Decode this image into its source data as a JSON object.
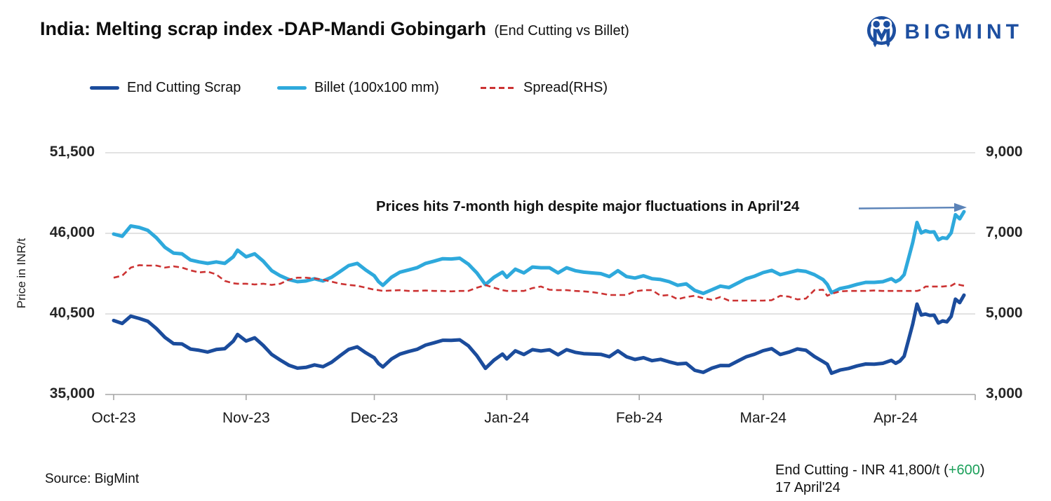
{
  "header": {
    "title": "India: Melting scrap index -DAP-Mandi Gobingarh",
    "subtitle": "(End Cutting vs Billet)",
    "brand": "BIGMINT",
    "brand_color": "#1D4FA0",
    "logo_icon": "bigmint-people-m-icon"
  },
  "legend": {
    "items": [
      {
        "label": "End Cutting Scrap",
        "color": "#1B4C9C",
        "style": "solid"
      },
      {
        "label": "Billet (100x100 mm)",
        "color": "#2EA9DC",
        "style": "solid"
      },
      {
        "label": "Spread(RHS)",
        "color": "#CC3333",
        "style": "dashed"
      }
    ]
  },
  "annotation": {
    "text": "Prices hits 7-month high despite major fluctuations in April'24",
    "arrow_icon": "right-arrow-icon",
    "arrow_color": "#5B83B8"
  },
  "footer": {
    "source_label": "Source: BigMint",
    "price_prefix": "End Cutting - INR 41,800/t (",
    "price_change": "+600",
    "price_suffix": ")",
    "change_color": "#1BA05A",
    "date_line": "17 April'24"
  },
  "chart_data": {
    "type": "line",
    "title": "India: Melting scrap index -DAP-Mandi Gobingarh (End Cutting vs Billet)",
    "x_unit": "days since 1 Oct 2023",
    "grid": true,
    "legend_position": "top",
    "left_axis": {
      "title": "Price in INR/t",
      "range": [
        35000,
        51500
      ],
      "ticks": [
        35000,
        40500,
        46000,
        51500
      ],
      "labels": [
        "35,000",
        "40,500",
        "46,000",
        "51,500"
      ]
    },
    "right_axis": {
      "title": "",
      "range": [
        3000,
        9000
      ],
      "ticks": [
        3000,
        5000,
        7000,
        9000
      ],
      "labels": [
        "3,000",
        "5,000",
        "7,000",
        "9,000"
      ]
    },
    "x_ticks": [
      {
        "day": 0,
        "label": "Oct-23"
      },
      {
        "day": 31,
        "label": "Nov-23"
      },
      {
        "day": 61,
        "label": "Dec-23"
      },
      {
        "day": 92,
        "label": "Jan-24"
      },
      {
        "day": 123,
        "label": "Feb-24"
      },
      {
        "day": 152,
        "label": "Mar-24"
      },
      {
        "day": 183,
        "label": "Apr-24"
      }
    ],
    "x": [
      0,
      2,
      4,
      6,
      8,
      10,
      12,
      14,
      16,
      18,
      20,
      22,
      24,
      26,
      28,
      29,
      31,
      33,
      35,
      37,
      39,
      41,
      43,
      45,
      47,
      49,
      51,
      53,
      55,
      57,
      59,
      61,
      62,
      63,
      65,
      67,
      69,
      71,
      73,
      75,
      77,
      79,
      81,
      83,
      85,
      87,
      89,
      91,
      92,
      94,
      96,
      98,
      100,
      102,
      104,
      106,
      108,
      110,
      112,
      114,
      116,
      118,
      120,
      122,
      124,
      126,
      128,
      130,
      132,
      134,
      136,
      138,
      140,
      142,
      144,
      146,
      148,
      150,
      152,
      154,
      156,
      158,
      160,
      162,
      164,
      166,
      167,
      168,
      170,
      172,
      174,
      176,
      178,
      180,
      182,
      183,
      184,
      185,
      186,
      187,
      188,
      189,
      190,
      191,
      192,
      193,
      194,
      195,
      196,
      197,
      198,
      199
    ],
    "series": [
      {
        "name": "Billet (100x100 mm)",
        "axis": "left",
        "color": "#2EA9DC",
        "width": 5,
        "dash": "",
        "values": [
          45950,
          45800,
          46500,
          46400,
          46200,
          45700,
          45050,
          44650,
          44600,
          44180,
          44050,
          43950,
          44050,
          43950,
          44400,
          44850,
          44400,
          44600,
          44100,
          43450,
          43100,
          42850,
          42700,
          42750,
          42900,
          42750,
          43000,
          43400,
          43800,
          43950,
          43500,
          43100,
          42700,
          42450,
          43000,
          43350,
          43500,
          43650,
          43950,
          44100,
          44270,
          44250,
          44300,
          43900,
          43300,
          42500,
          43000,
          43350,
          43000,
          43550,
          43300,
          43700,
          43650,
          43650,
          43300,
          43650,
          43450,
          43350,
          43300,
          43250,
          43050,
          43450,
          43050,
          42950,
          43100,
          42900,
          42850,
          42700,
          42450,
          42550,
          42100,
          41900,
          42150,
          42400,
          42300,
          42600,
          42900,
          43080,
          43320,
          43470,
          43180,
          43320,
          43470,
          43400,
          43180,
          42850,
          42520,
          41950,
          42230,
          42350,
          42520,
          42650,
          42650,
          42700,
          42900,
          42700,
          42850,
          43180,
          44270,
          45370,
          46740,
          46030,
          46170,
          46080,
          46100,
          45560,
          45700,
          45650,
          46030,
          47270,
          46990,
          47480
        ]
      },
      {
        "name": "End Cutting Scrap",
        "axis": "left",
        "color": "#1B4C9C",
        "width": 5,
        "dash": "",
        "values": [
          40050,
          39850,
          40350,
          40190,
          40000,
          39500,
          38900,
          38470,
          38450,
          38100,
          38020,
          37900,
          38070,
          38130,
          38640,
          39100,
          38650,
          38870,
          38350,
          37730,
          37350,
          37000,
          36800,
          36850,
          37020,
          36900,
          37200,
          37650,
          38080,
          38250,
          37850,
          37500,
          37110,
          36880,
          37420,
          37760,
          37930,
          38080,
          38370,
          38530,
          38700,
          38690,
          38730,
          38330,
          37650,
          36785,
          37350,
          37760,
          37430,
          37980,
          37730,
          38060,
          37970,
          38050,
          37710,
          38060,
          37880,
          37790,
          37760,
          37740,
          37580,
          37980,
          37580,
          37390,
          37510,
          37310,
          37400,
          37230,
          37085,
          37130,
          36650,
          36510,
          36800,
          36980,
          36970,
          37270,
          37570,
          37750,
          37990,
          38130,
          37730,
          37890,
          38110,
          38020,
          37590,
          37250,
          37070,
          36450,
          36670,
          36780,
          36950,
          37080,
          37070,
          37130,
          37330,
          37130,
          37280,
          37610,
          38700,
          39800,
          41170,
          40430,
          40490,
          40400,
          40420,
          39880,
          40020,
          39960,
          40330,
          41510,
          41270,
          41780
        ]
      },
      {
        "name": "Spread(RHS)",
        "axis": "right",
        "color": "#CC3333",
        "width": 2.6,
        "dash": "8 5",
        "values": [
          5900,
          5950,
          6150,
          6210,
          6200,
          6200,
          6150,
          6180,
          6150,
          6080,
          6030,
          6050,
          5980,
          5820,
          5760,
          5750,
          5750,
          5730,
          5750,
          5720,
          5750,
          5850,
          5900,
          5900,
          5880,
          5850,
          5800,
          5750,
          5720,
          5700,
          5650,
          5600,
          5590,
          5570,
          5580,
          5590,
          5570,
          5570,
          5580,
          5570,
          5570,
          5560,
          5570,
          5570,
          5650,
          5715,
          5650,
          5590,
          5570,
          5570,
          5570,
          5640,
          5680,
          5600,
          5590,
          5590,
          5570,
          5560,
          5540,
          5510,
          5470,
          5470,
          5470,
          5560,
          5590,
          5590,
          5450,
          5470,
          5365,
          5420,
          5450,
          5390,
          5350,
          5420,
          5330,
          5330,
          5330,
          5330,
          5330,
          5340,
          5450,
          5430,
          5360,
          5380,
          5590,
          5600,
          5450,
          5500,
          5560,
          5570,
          5570,
          5570,
          5580,
          5570,
          5570,
          5570,
          5570,
          5570,
          5570,
          5570,
          5570,
          5600,
          5680,
          5680,
          5680,
          5680,
          5680,
          5690,
          5700,
          5760,
          5720,
          5700
        ]
      }
    ],
    "annotations": [
      {
        "text": "Prices hits 7-month high despite major fluctuations in April'24",
        "points_to": "Billet final peak 47,480 on 17 Apr 2024"
      }
    ]
  }
}
